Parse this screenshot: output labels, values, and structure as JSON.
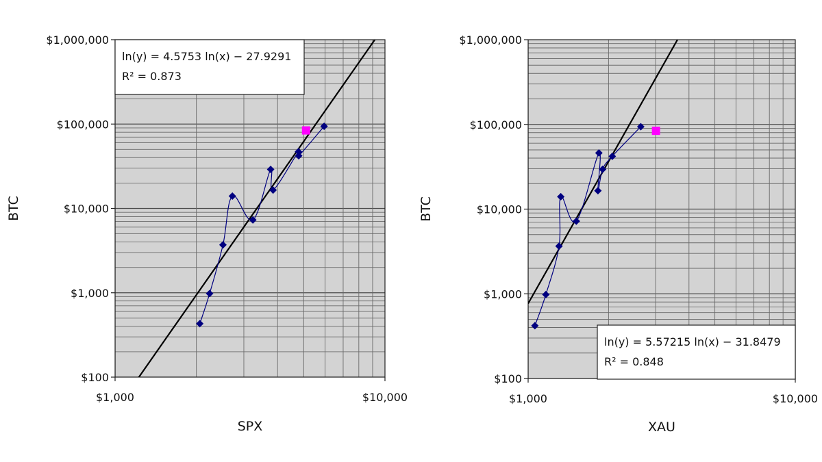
{
  "chart_data": [
    {
      "type": "scatter",
      "xlabel": "SPX",
      "ylabel": "BTC",
      "x_scale": "log",
      "y_scale": "log",
      "xlim": [
        1000,
        10000
      ],
      "ylim": [
        100,
        1000000
      ],
      "x_ticks": [
        {
          "value": 1000,
          "label": "$1,000"
        },
        {
          "value": 10000,
          "label": "$10,000"
        }
      ],
      "y_ticks": [
        {
          "value": 100,
          "label": "$100"
        },
        {
          "value": 1000,
          "label": "$1,000"
        },
        {
          "value": 10000,
          "label": "$10,000"
        },
        {
          "value": 100000,
          "label": "$100,000"
        },
        {
          "value": 1000000,
          "label": "$1,000,000"
        }
      ],
      "grid": true,
      "background": "#d3d3d3",
      "series": [
        {
          "marker": "diamond",
          "color": "#000080",
          "connected": "smooth",
          "points": [
            {
              "x": 2060,
              "y": 430
            },
            {
              "x": 2240,
              "y": 980
            },
            {
              "x": 2510,
              "y": 3700
            },
            {
              "x": 2720,
              "y": 14000
            },
            {
              "x": 3240,
              "y": 7300
            },
            {
              "x": 3770,
              "y": 29000
            },
            {
              "x": 3850,
              "y": 16500
            },
            {
              "x": 4780,
              "y": 47000
            },
            {
              "x": 4790,
              "y": 42000
            },
            {
              "x": 5950,
              "y": 94000
            }
          ]
        },
        {
          "marker": "square",
          "color": "#ff00ff",
          "points": [
            {
              "x": 5100,
              "y": 84000
            }
          ]
        }
      ],
      "trendline": {
        "a": 4.5753,
        "b": -27.9291,
        "color": "#000000"
      },
      "equation_lines": [
        "ln(y) = 4.5753 ln(x) − 27.9291",
        "R² = 0.873"
      ],
      "equation_box_position": "top-left"
    },
    {
      "type": "scatter",
      "xlabel": "XAU",
      "ylabel": "BTC",
      "x_scale": "log",
      "y_scale": "log",
      "xlim": [
        1000,
        10000
      ],
      "ylim": [
        100,
        1000000
      ],
      "x_ticks": [
        {
          "value": 1000,
          "label": "$1,000"
        },
        {
          "value": 10000,
          "label": "$10,000"
        }
      ],
      "y_ticks": [
        {
          "value": 100,
          "label": "$100"
        },
        {
          "value": 1000,
          "label": "$1,000"
        },
        {
          "value": 10000,
          "label": "$10,000"
        },
        {
          "value": 100000,
          "label": "$100,000"
        },
        {
          "value": 1000000,
          "label": "$1,000,000"
        }
      ],
      "grid": true,
      "background": "#d3d3d3",
      "series": [
        {
          "marker": "diamond",
          "color": "#000080",
          "connected": "smooth",
          "points": [
            {
              "x": 1060,
              "y": 420
            },
            {
              "x": 1165,
              "y": 980
            },
            {
              "x": 1305,
              "y": 3650
            },
            {
              "x": 1325,
              "y": 14000
            },
            {
              "x": 1515,
              "y": 7200
            },
            {
              "x": 1840,
              "y": 46000
            },
            {
              "x": 1825,
              "y": 16500
            },
            {
              "x": 1900,
              "y": 29500
            },
            {
              "x": 2065,
              "y": 42000
            },
            {
              "x": 2640,
              "y": 94000
            }
          ]
        },
        {
          "marker": "square",
          "color": "#ff00ff",
          "points": [
            {
              "x": 3010,
              "y": 84000
            }
          ]
        }
      ],
      "trendline": {
        "a": 5.57215,
        "b": -31.8479,
        "color": "#000000"
      },
      "equation_lines": [
        "ln(y) = 5.57215 ln(x) − 31.8479",
        "R² = 0.848"
      ],
      "equation_box_position": "bottom-right"
    }
  ]
}
